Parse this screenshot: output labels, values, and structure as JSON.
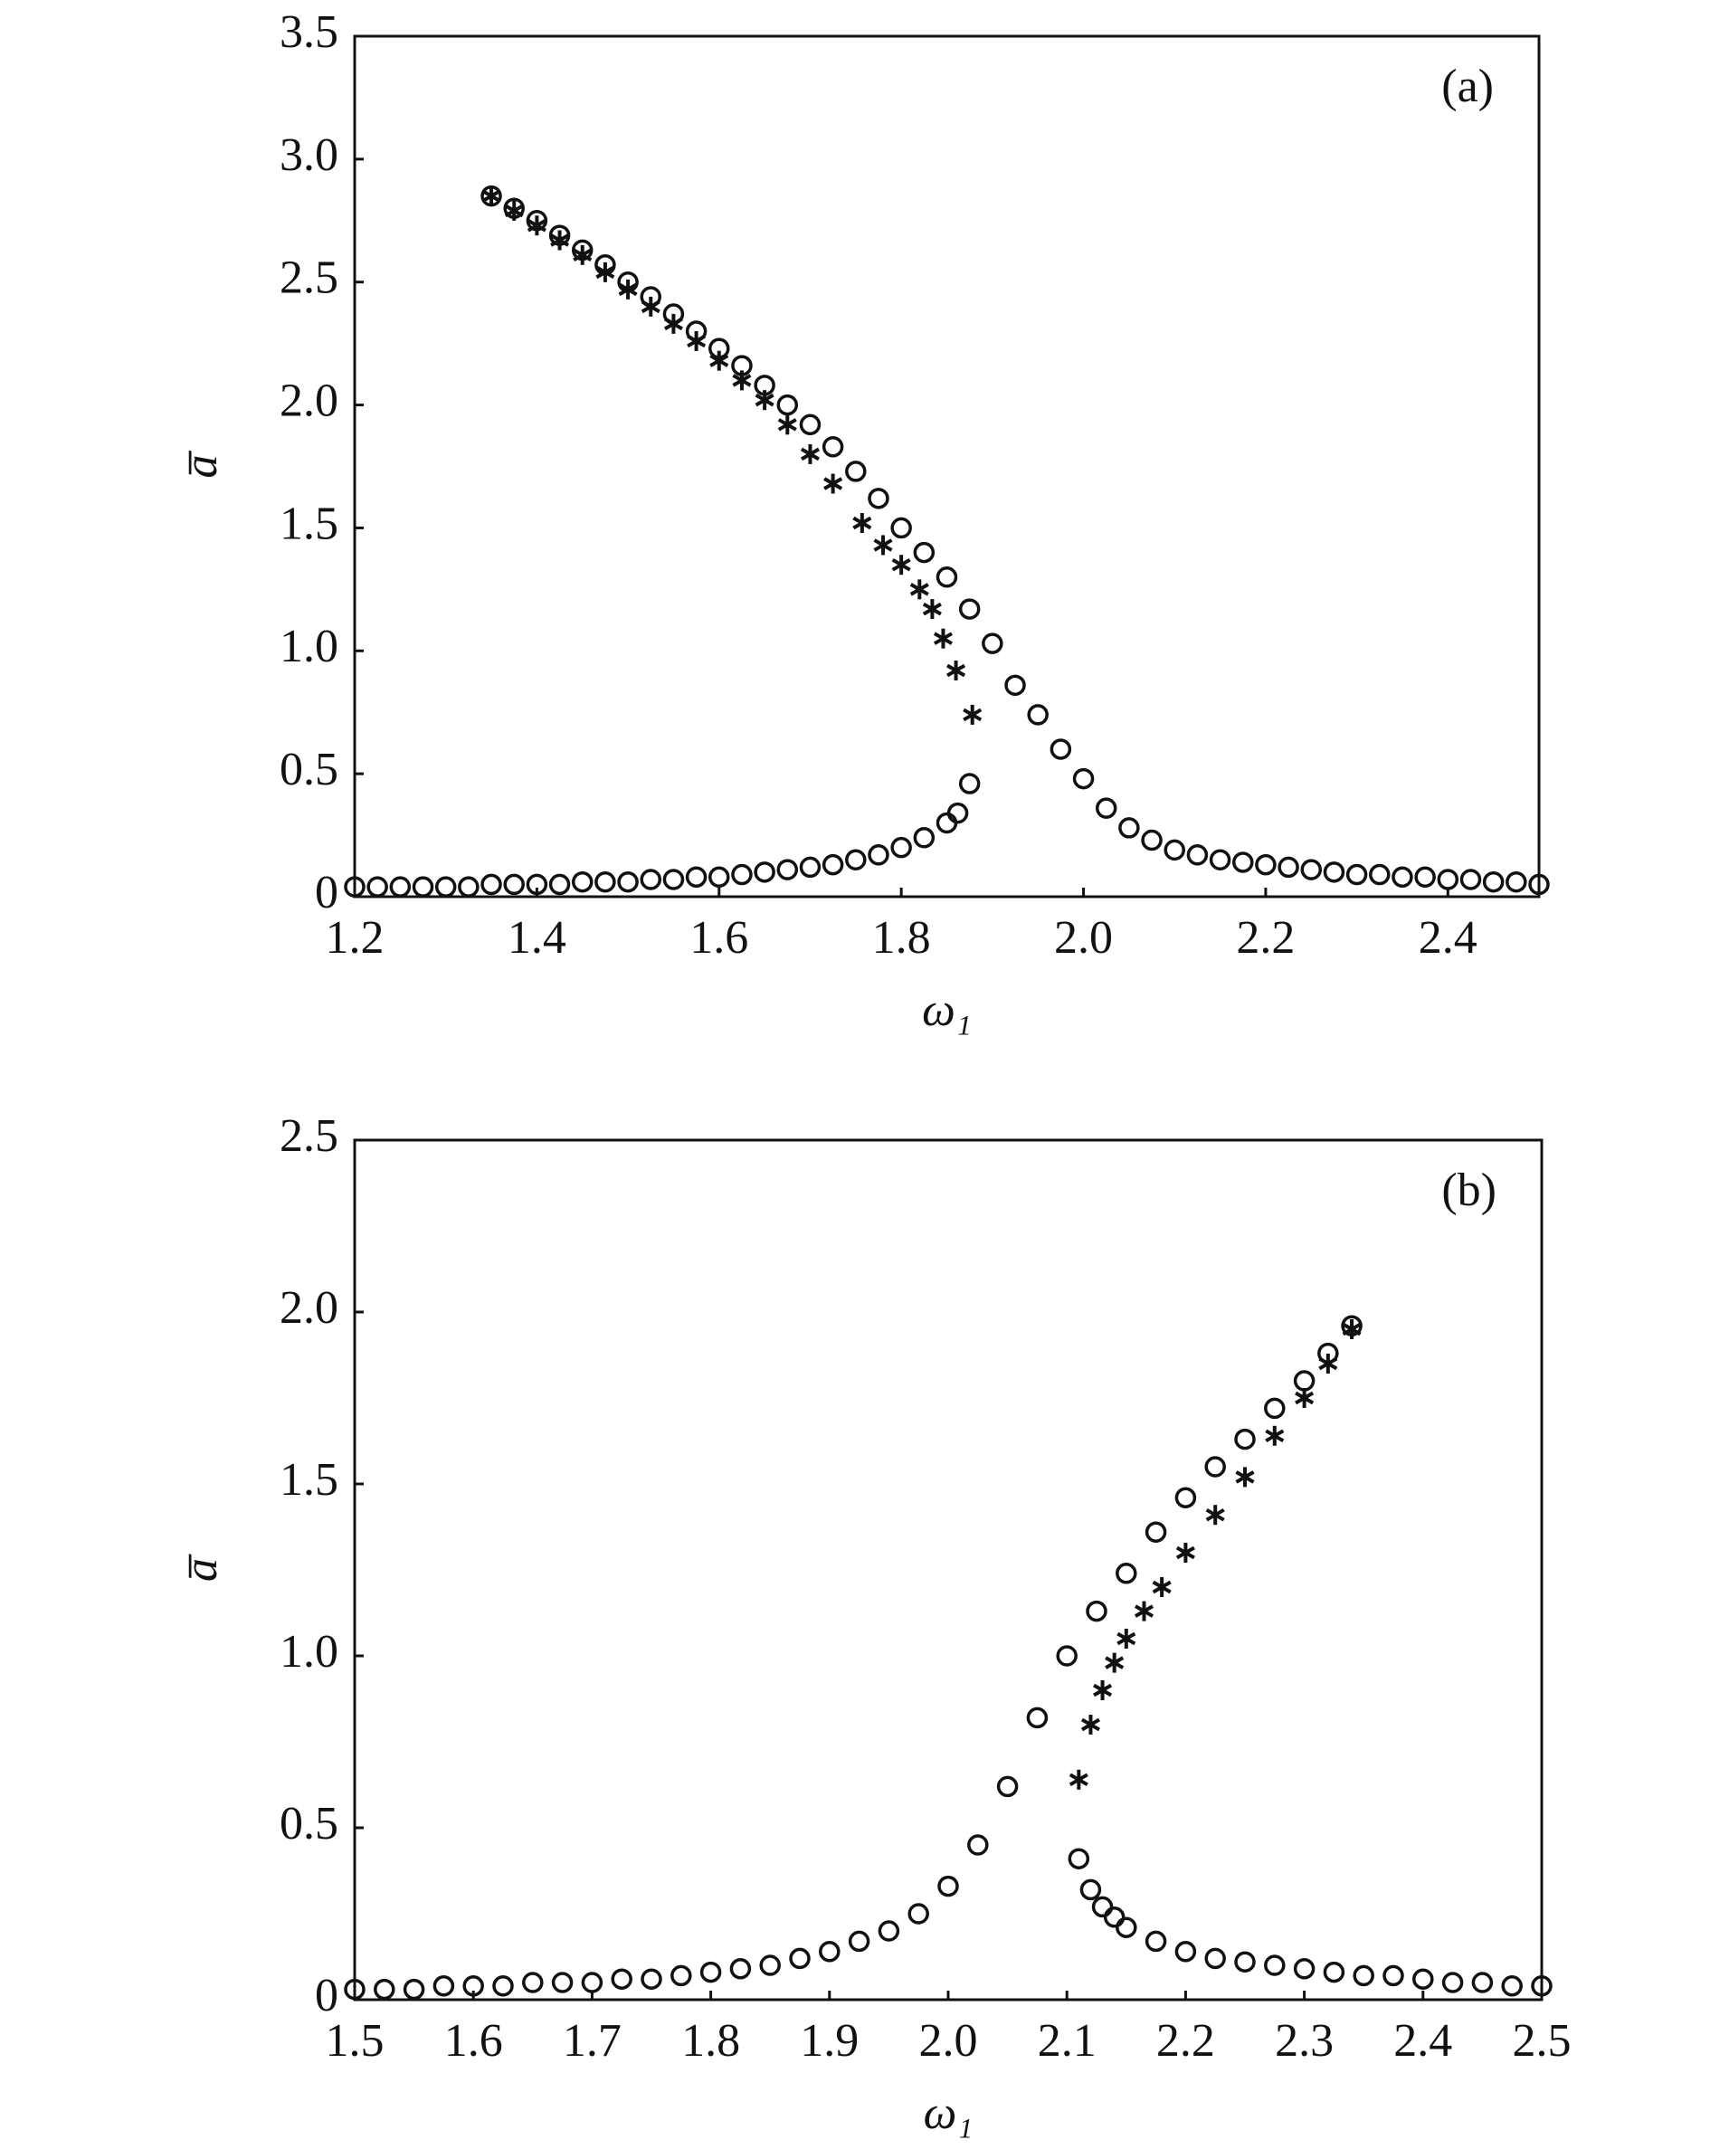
{
  "chart_data": [
    {
      "type": "scatter",
      "annotation": "(a)",
      "xlabel": "ω₁",
      "ylabel": "a̅",
      "xlim": [
        1.2,
        2.5
      ],
      "ylim": [
        0,
        3.5
      ],
      "xticks": [
        1.2,
        1.4,
        1.6,
        1.8,
        {
          "value": 2,
          "label": "2.0"
        },
        2.2,
        2.4
      ],
      "yticks": [
        0,
        0.5,
        {
          "value": 1,
          "label": "1.0"
        },
        1.5,
        {
          "value": 2,
          "label": "2.0"
        },
        2.5,
        {
          "value": 3,
          "label": "3.0"
        },
        3.5
      ],
      "series": [
        {
          "marker": "circle",
          "color": "#111111",
          "x": [
            1.35,
            1.375,
            1.4,
            1.425,
            1.45,
            1.475,
            1.5,
            1.525,
            1.55,
            1.575,
            1.6,
            1.625,
            1.65,
            1.675,
            1.7,
            1.725,
            1.75,
            1.775,
            1.8,
            1.825,
            1.85,
            1.875,
            1.9,
            1.925,
            1.95,
            1.975,
            2.0,
            2.025,
            2.05,
            2.075,
            2.1,
            2.125,
            2.15,
            2.175,
            2.2,
            2.225,
            2.25,
            2.275,
            2.3,
            2.325,
            2.35,
            2.375,
            2.4,
            2.425,
            2.45,
            2.475,
            2.5
          ],
          "values": [
            2.85,
            2.8,
            2.75,
            2.69,
            2.63,
            2.57,
            2.5,
            2.44,
            2.37,
            2.3,
            2.23,
            2.16,
            2.08,
            2.0,
            1.92,
            1.83,
            1.73,
            1.62,
            1.5,
            1.4,
            1.3,
            1.17,
            1.03,
            0.86,
            0.74,
            0.6,
            0.48,
            0.36,
            0.28,
            0.23,
            0.19,
            0.17,
            0.15,
            0.14,
            0.13,
            0.12,
            0.11,
            0.1,
            0.09,
            0.09,
            0.08,
            0.08,
            0.07,
            0.07,
            0.06,
            0.06,
            0.05
          ]
        },
        {
          "marker": "circle",
          "color": "#111111",
          "x": [
            1.2,
            1.225,
            1.25,
            1.275,
            1.3,
            1.325,
            1.35,
            1.375,
            1.4,
            1.425,
            1.45,
            1.475,
            1.5,
            1.525,
            1.55,
            1.575,
            1.6,
            1.625,
            1.65,
            1.675,
            1.7,
            1.725,
            1.75,
            1.775,
            1.8,
            1.825,
            1.85,
            1.862,
            1.875
          ],
          "values": [
            0.04,
            0.04,
            0.04,
            0.04,
            0.04,
            0.04,
            0.05,
            0.05,
            0.05,
            0.05,
            0.06,
            0.06,
            0.06,
            0.07,
            0.07,
            0.08,
            0.08,
            0.09,
            0.1,
            0.11,
            0.12,
            0.13,
            0.15,
            0.17,
            0.2,
            0.24,
            0.3,
            0.34,
            0.46
          ]
        },
        {
          "marker": "star",
          "color": "#111111",
          "x": [
            1.35,
            1.375,
            1.4,
            1.425,
            1.45,
            1.475,
            1.5,
            1.525,
            1.55,
            1.575,
            1.6,
            1.625,
            1.65,
            1.675,
            1.7,
            1.725,
            1.757,
            1.78,
            1.8,
            1.82,
            1.834,
            1.846,
            1.86,
            1.878
          ],
          "values": [
            2.85,
            2.79,
            2.73,
            2.67,
            2.61,
            2.54,
            2.47,
            2.4,
            2.33,
            2.26,
            2.18,
            2.1,
            2.02,
            1.92,
            1.8,
            1.68,
            1.52,
            1.43,
            1.35,
            1.25,
            1.17,
            1.05,
            0.92,
            0.74
          ]
        }
      ]
    },
    {
      "type": "scatter",
      "annotation": "(b)",
      "xlabel": "ω₁",
      "ylabel": "a̅",
      "xlim": [
        1.5,
        2.5
      ],
      "ylim": [
        0,
        2.5
      ],
      "xticks": [
        1.5,
        1.6,
        1.7,
        1.8,
        1.9,
        {
          "value": 2,
          "label": "2.0"
        },
        2.1,
        2.2,
        2.3,
        2.4,
        2.5
      ],
      "yticks": [
        0,
        0.5,
        {
          "value": 1,
          "label": "1.0"
        },
        1.5,
        {
          "value": 2,
          "label": "2.0"
        },
        2.5
      ],
      "series": [
        {
          "marker": "circle",
          "color": "#111111",
          "x": [
            1.5,
            1.525,
            1.55,
            1.575,
            1.6,
            1.625,
            1.65,
            1.675,
            1.7,
            1.725,
            1.75,
            1.775,
            1.8,
            1.825,
            1.85,
            1.875,
            1.9,
            1.925,
            1.95,
            1.975,
            2.0,
            2.025,
            2.05,
            2.075,
            2.1,
            2.125,
            2.15,
            2.175,
            2.2,
            2.225,
            2.25,
            2.275,
            2.3,
            2.32,
            2.34
          ],
          "values": [
            0.03,
            0.03,
            0.03,
            0.04,
            0.04,
            0.04,
            0.05,
            0.05,
            0.05,
            0.06,
            0.06,
            0.07,
            0.08,
            0.09,
            0.1,
            0.12,
            0.14,
            0.17,
            0.2,
            0.25,
            0.33,
            0.45,
            0.62,
            0.82,
            1.0,
            1.13,
            1.24,
            1.36,
            1.46,
            1.55,
            1.63,
            1.72,
            1.8,
            1.88,
            1.96
          ]
        },
        {
          "marker": "circle",
          "color": "#111111",
          "x": [
            2.11,
            2.12,
            2.13,
            2.14,
            2.15,
            2.175,
            2.2,
            2.225,
            2.25,
            2.275,
            2.3,
            2.325,
            2.35,
            2.375,
            2.4,
            2.425,
            2.45,
            2.475,
            2.5
          ],
          "values": [
            0.41,
            0.32,
            0.27,
            0.24,
            0.21,
            0.17,
            0.14,
            0.12,
            0.11,
            0.1,
            0.09,
            0.08,
            0.07,
            0.07,
            0.06,
            0.05,
            0.05,
            0.04,
            0.04
          ]
        },
        {
          "marker": "star",
          "color": "#111111",
          "x": [
            2.11,
            2.12,
            2.13,
            2.14,
            2.15,
            2.165,
            2.18,
            2.2,
            2.225,
            2.25,
            2.275,
            2.3,
            2.32,
            2.34
          ],
          "values": [
            0.64,
            0.8,
            0.9,
            0.98,
            1.05,
            1.13,
            1.2,
            1.3,
            1.41,
            1.52,
            1.64,
            1.75,
            1.85,
            1.95
          ]
        }
      ]
    }
  ]
}
